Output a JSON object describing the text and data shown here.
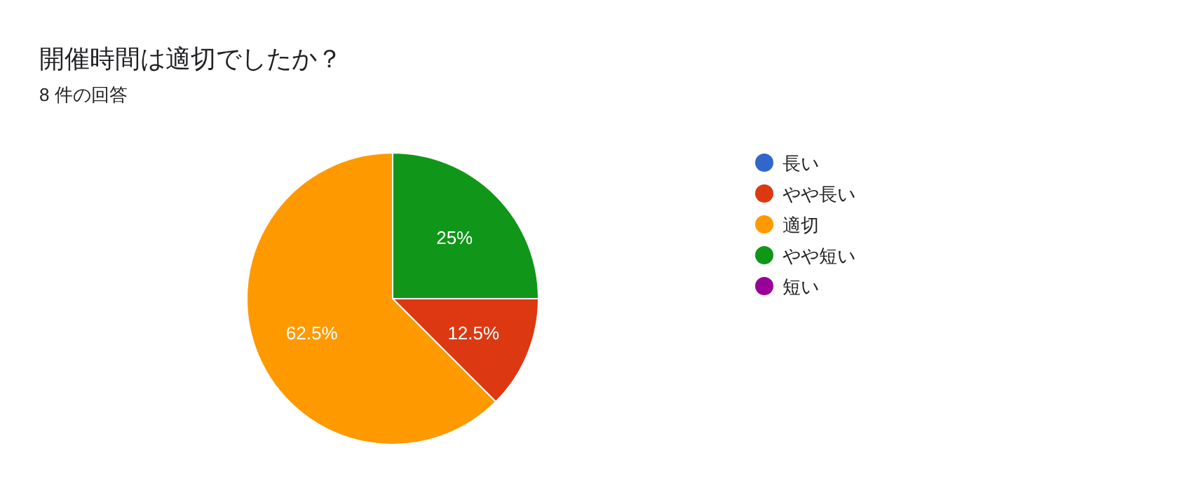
{
  "chart_data": {
    "type": "pie",
    "title": "開催時間は適切でしたか？",
    "subtitle": "8 件の回答",
    "categories": [
      "長い",
      "やや長い",
      "適切",
      "やや短い",
      "短い"
    ],
    "values": [
      0,
      12.5,
      62.5,
      25,
      0
    ],
    "colors": [
      "#3366cc",
      "#dc3912",
      "#ff9900",
      "#109618",
      "#990099"
    ],
    "value_labels": [
      null,
      "12.5%",
      "62.5%",
      "25%",
      null
    ],
    "legend": "right"
  }
}
